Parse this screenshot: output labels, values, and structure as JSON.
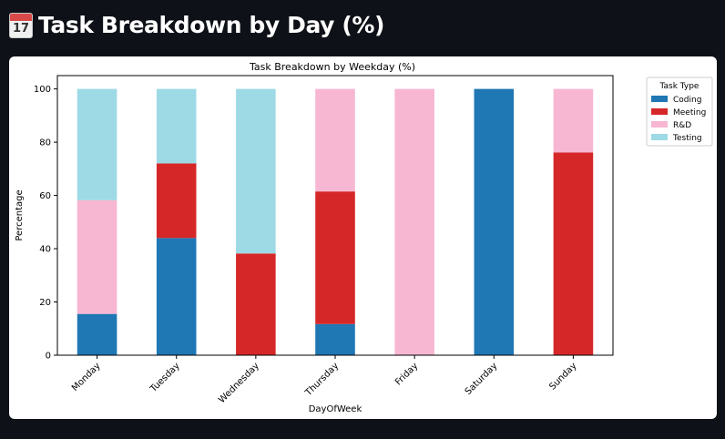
{
  "page": {
    "title": "Task Breakdown by Day (%)",
    "title_icon": "calendar-icon",
    "calendar_icon_day": "17"
  },
  "chart_data": {
    "type": "bar",
    "stacked": true,
    "title": "Task Breakdown by Weekday (%)",
    "xlabel": "DayOfWeek",
    "ylabel": "Percentage",
    "ylim": [
      0,
      105
    ],
    "yticks": [
      0,
      20,
      40,
      60,
      80,
      100
    ],
    "categories": [
      "Monday",
      "Tuesday",
      "Wednesday",
      "Thursday",
      "Friday",
      "Saturday",
      "Sunday"
    ],
    "series": [
      {
        "name": "Coding",
        "color": "#1f77b4",
        "values": [
          15.5,
          44,
          0,
          11.7,
          0,
          100,
          0
        ]
      },
      {
        "name": "Meeting",
        "color": "#d62728",
        "values": [
          0,
          28,
          38.2,
          49.8,
          0,
          0,
          76.1
        ]
      },
      {
        "name": "R&D",
        "color": "#f7b6d2",
        "values": [
          42.7,
          0,
          0,
          38.5,
          100,
          0,
          23.9
        ]
      },
      {
        "name": "Testing",
        "color": "#9edae5",
        "values": [
          41.8,
          28,
          61.8,
          0,
          0,
          0,
          0
        ]
      }
    ],
    "legend": {
      "title": "Task Type",
      "placement": "outside-top-right"
    },
    "grid": false
  }
}
